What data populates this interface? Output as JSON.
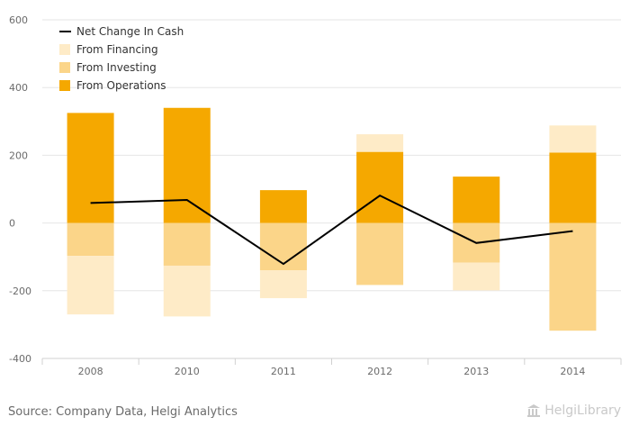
{
  "chart_data": {
    "type": "bar",
    "categories": [
      "2008",
      "2010",
      "2011",
      "2012",
      "2013",
      "2014"
    ],
    "ylim": [
      -400,
      600
    ],
    "yticks": [
      -400,
      -200,
      0,
      200,
      400,
      600
    ],
    "ytick_labels": [
      "-400",
      "-200",
      "0",
      "200",
      "400",
      "600"
    ],
    "grid": true,
    "legend_position": "top-left",
    "stacked": true,
    "series": [
      {
        "name": "From Operations",
        "type": "bar",
        "values": [
          325,
          340,
          97,
          210,
          137,
          208
        ],
        "color": "#F5A800"
      },
      {
        "name": "From Investing",
        "type": "bar",
        "values": [
          -97,
          -126,
          -140,
          -183,
          -117,
          -318
        ],
        "color": "#FBD589"
      },
      {
        "name": "From Financing",
        "type": "bar",
        "values": [
          -173,
          -150,
          -82,
          52,
          -82,
          80
        ],
        "color": "#FEEBC7"
      },
      {
        "name": "Net Change In Cash",
        "type": "line",
        "values": [
          59,
          68,
          -121,
          81,
          -59,
          -24
        ],
        "color": "#000000"
      }
    ],
    "legend_order": [
      "Net Change In Cash",
      "From Financing",
      "From Investing",
      "From Operations"
    ]
  },
  "footer": {
    "source": "Source: Company Data, Helgi Analytics",
    "brand": "HelgiLibrary"
  }
}
